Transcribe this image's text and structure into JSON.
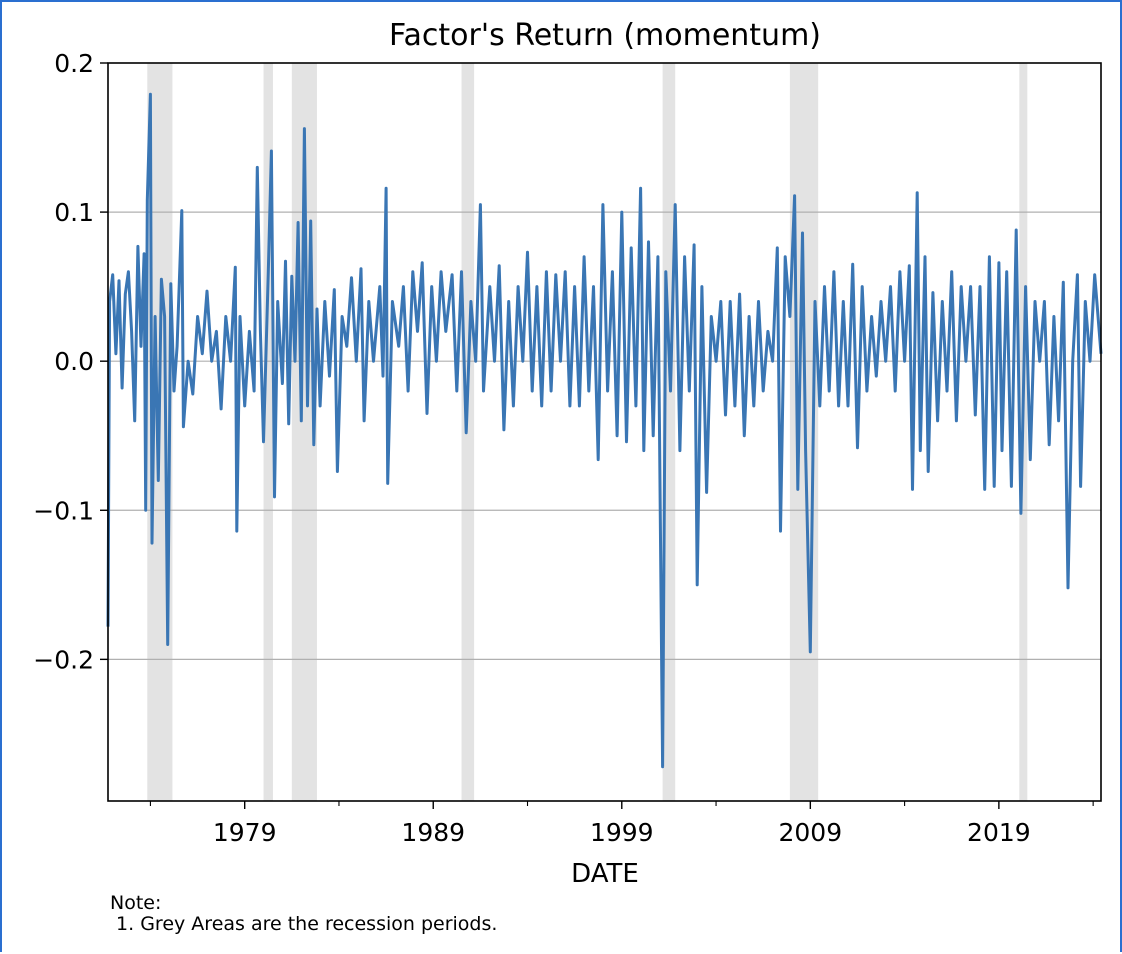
{
  "chart_data": {
    "type": "line",
    "title": "Factor's Return (momentum)",
    "xlabel": "DATE",
    "ylabel": "",
    "x_range": [
      "1971-10",
      "2024-06"
    ],
    "ylim": [
      -0.295,
      0.2
    ],
    "y_ticks": [
      0.2,
      0.1,
      0.0,
      -0.1,
      -0.2
    ],
    "y_tick_labels": [
      "0.2",
      "0.1",
      "0.0",
      "−0.1",
      "−0.2"
    ],
    "x_ticks": [
      1979,
      1989,
      1999,
      2009,
      2019
    ],
    "x_tick_labels": [
      "1979",
      "1989",
      "1999",
      "2009",
      "2019"
    ],
    "grid": "horizontal",
    "legend": "none",
    "line_color": "#3a76b4",
    "recession_color": "#e3e3e3",
    "recessions": [
      {
        "start": "1973-11",
        "end": "1975-03"
      },
      {
        "start": "1980-01",
        "end": "1980-07"
      },
      {
        "start": "1981-07",
        "end": "1982-11"
      },
      {
        "start": "1990-07",
        "end": "1991-03"
      },
      {
        "start": "2001-03",
        "end": "2001-11"
      },
      {
        "start": "2007-12",
        "end": "2009-06"
      },
      {
        "start": "2020-02",
        "end": "2020-04"
      }
    ],
    "series": [
      {
        "points": [
          [
            "1971-10",
            -0.178
          ],
          [
            "1971-11",
            0.04
          ],
          [
            "1972-01",
            0.058
          ],
          [
            "1972-03",
            0.005
          ],
          [
            "1972-05",
            0.054
          ],
          [
            "1972-07",
            -0.018
          ],
          [
            "1972-09",
            0.045
          ],
          [
            "1972-11",
            0.06
          ],
          [
            "1973-01",
            0.02
          ],
          [
            "1973-03",
            -0.04
          ],
          [
            "1973-05",
            0.077
          ],
          [
            "1973-07",
            0.01
          ],
          [
            "1973-09",
            0.072
          ],
          [
            "1973-10",
            -0.1
          ],
          [
            "1973-11",
            0.108
          ],
          [
            "1974-01",
            0.179
          ],
          [
            "1974-02",
            -0.122
          ],
          [
            "1974-04",
            0.03
          ],
          [
            "1974-06",
            -0.08
          ],
          [
            "1974-08",
            0.055
          ],
          [
            "1974-10",
            0.03
          ],
          [
            "1974-12",
            -0.19
          ],
          [
            "1975-02",
            0.052
          ],
          [
            "1975-04",
            -0.02
          ],
          [
            "1975-06",
            0.01
          ],
          [
            "1975-09",
            0.101
          ],
          [
            "1975-10",
            -0.044
          ],
          [
            "1976-01",
            0.0
          ],
          [
            "1976-04",
            -0.022
          ],
          [
            "1976-07",
            0.03
          ],
          [
            "1976-10",
            0.005
          ],
          [
            "1977-01",
            0.047
          ],
          [
            "1977-04",
            0.0
          ],
          [
            "1977-07",
            0.02
          ],
          [
            "1977-10",
            -0.032
          ],
          [
            "1978-01",
            0.03
          ],
          [
            "1978-04",
            0.0
          ],
          [
            "1978-07",
            0.063
          ],
          [
            "1978-08",
            -0.114
          ],
          [
            "1978-10",
            0.03
          ],
          [
            "1979-01",
            -0.03
          ],
          [
            "1979-04",
            0.02
          ],
          [
            "1979-07",
            -0.02
          ],
          [
            "1979-09",
            0.13
          ],
          [
            "1979-11",
            0.02
          ],
          [
            "1980-01",
            -0.054
          ],
          [
            "1980-04",
            0.06
          ],
          [
            "1980-06",
            0.141
          ],
          [
            "1980-08",
            -0.091
          ],
          [
            "1980-10",
            0.04
          ],
          [
            "1981-01",
            -0.015
          ],
          [
            "1981-03",
            0.067
          ],
          [
            "1981-05",
            -0.042
          ],
          [
            "1981-07",
            0.057
          ],
          [
            "1981-09",
            0.0
          ],
          [
            "1981-11",
            0.093
          ],
          [
            "1982-01",
            -0.04
          ],
          [
            "1982-03",
            0.156
          ],
          [
            "1982-05",
            -0.03
          ],
          [
            "1982-07",
            0.094
          ],
          [
            "1982-09",
            -0.056
          ],
          [
            "1982-11",
            0.035
          ],
          [
            "1983-01",
            -0.03
          ],
          [
            "1983-04",
            0.04
          ],
          [
            "1983-07",
            -0.01
          ],
          [
            "1983-10",
            0.048
          ],
          [
            "1983-12",
            -0.074
          ],
          [
            "1984-03",
            0.03
          ],
          [
            "1984-06",
            0.01
          ],
          [
            "1984-09",
            0.056
          ],
          [
            "1984-12",
            0.0
          ],
          [
            "1985-03",
            0.062
          ],
          [
            "1985-05",
            -0.04
          ],
          [
            "1985-08",
            0.04
          ],
          [
            "1985-11",
            0.0
          ],
          [
            "1986-03",
            0.05
          ],
          [
            "1986-05",
            -0.01
          ],
          [
            "1986-07",
            0.116
          ],
          [
            "1986-08",
            -0.082
          ],
          [
            "1986-11",
            0.04
          ],
          [
            "1987-03",
            0.01
          ],
          [
            "1987-06",
            0.05
          ],
          [
            "1987-09",
            -0.02
          ],
          [
            "1987-12",
            0.06
          ],
          [
            "1988-03",
            0.02
          ],
          [
            "1988-06",
            0.066
          ],
          [
            "1988-09",
            -0.035
          ],
          [
            "1988-12",
            0.05
          ],
          [
            "1989-03",
            0.0
          ],
          [
            "1989-06",
            0.06
          ],
          [
            "1989-09",
            0.02
          ],
          [
            "1990-01",
            0.058
          ],
          [
            "1990-04",
            -0.02
          ],
          [
            "1990-07",
            0.06
          ],
          [
            "1990-10",
            -0.048
          ],
          [
            "1991-01",
            0.04
          ],
          [
            "1991-04",
            0.0
          ],
          [
            "1991-07",
            0.105
          ],
          [
            "1991-09",
            -0.02
          ],
          [
            "1992-01",
            0.05
          ],
          [
            "1992-04",
            0.0
          ],
          [
            "1992-07",
            0.064
          ],
          [
            "1992-10",
            -0.046
          ],
          [
            "1993-01",
            0.04
          ],
          [
            "1993-04",
            -0.03
          ],
          [
            "1993-07",
            0.05
          ],
          [
            "1993-10",
            0.0
          ],
          [
            "1994-01",
            0.073
          ],
          [
            "1994-04",
            -0.02
          ],
          [
            "1994-07",
            0.05
          ],
          [
            "1994-10",
            -0.03
          ],
          [
            "1995-01",
            0.06
          ],
          [
            "1995-04",
            -0.02
          ],
          [
            "1995-07",
            0.058
          ],
          [
            "1995-10",
            0.0
          ],
          [
            "1996-01",
            0.06
          ],
          [
            "1996-04",
            -0.03
          ],
          [
            "1996-07",
            0.05
          ],
          [
            "1996-10",
            -0.03
          ],
          [
            "1997-01",
            0.07
          ],
          [
            "1997-04",
            -0.02
          ],
          [
            "1997-07",
            0.05
          ],
          [
            "1997-10",
            -0.066
          ],
          [
            "1998-01",
            0.105
          ],
          [
            "1998-04",
            -0.02
          ],
          [
            "1998-07",
            0.06
          ],
          [
            "1998-10",
            -0.05
          ],
          [
            "1999-01",
            0.1
          ],
          [
            "1999-04",
            -0.054
          ],
          [
            "1999-07",
            0.076
          ],
          [
            "1999-10",
            -0.03
          ],
          [
            "2000-01",
            0.116
          ],
          [
            "2000-03",
            -0.06
          ],
          [
            "2000-06",
            0.08
          ],
          [
            "2000-09",
            -0.05
          ],
          [
            "2000-12",
            0.07
          ],
          [
            "2001-03",
            -0.272
          ],
          [
            "2001-05",
            0.06
          ],
          [
            "2001-08",
            -0.02
          ],
          [
            "2001-11",
            0.105
          ],
          [
            "2002-02",
            -0.06
          ],
          [
            "2002-05",
            0.07
          ],
          [
            "2002-08",
            -0.02
          ],
          [
            "2002-11",
            0.078
          ],
          [
            "2003-01",
            -0.15
          ],
          [
            "2003-04",
            0.05
          ],
          [
            "2003-07",
            -0.088
          ],
          [
            "2003-10",
            0.03
          ],
          [
            "2004-01",
            0.0
          ],
          [
            "2004-04",
            0.04
          ],
          [
            "2004-07",
            -0.036
          ],
          [
            "2004-10",
            0.04
          ],
          [
            "2005-01",
            -0.03
          ],
          [
            "2005-04",
            0.045
          ],
          [
            "2005-07",
            -0.05
          ],
          [
            "2005-10",
            0.03
          ],
          [
            "2006-01",
            -0.03
          ],
          [
            "2006-04",
            0.04
          ],
          [
            "2006-07",
            -0.02
          ],
          [
            "2006-10",
            0.02
          ],
          [
            "2007-01",
            0.0
          ],
          [
            "2007-04",
            0.076
          ],
          [
            "2007-06",
            -0.114
          ],
          [
            "2007-09",
            0.07
          ],
          [
            "2007-12",
            0.03
          ],
          [
            "2008-03",
            0.111
          ],
          [
            "2008-05",
            -0.086
          ],
          [
            "2008-08",
            0.086
          ],
          [
            "2008-10",
            -0.06
          ],
          [
            "2009-01",
            -0.195
          ],
          [
            "2009-04",
            0.04
          ],
          [
            "2009-07",
            -0.03
          ],
          [
            "2009-10",
            0.05
          ],
          [
            "2010-01",
            -0.02
          ],
          [
            "2010-04",
            0.06
          ],
          [
            "2010-07",
            -0.03
          ],
          [
            "2010-10",
            0.04
          ],
          [
            "2011-01",
            -0.03
          ],
          [
            "2011-04",
            0.065
          ],
          [
            "2011-07",
            -0.058
          ],
          [
            "2011-10",
            0.05
          ],
          [
            "2012-01",
            -0.02
          ],
          [
            "2012-04",
            0.03
          ],
          [
            "2012-07",
            -0.01
          ],
          [
            "2012-10",
            0.04
          ],
          [
            "2013-01",
            0.0
          ],
          [
            "2013-04",
            0.05
          ],
          [
            "2013-07",
            -0.02
          ],
          [
            "2013-10",
            0.06
          ],
          [
            "2014-01",
            0.0
          ],
          [
            "2014-04",
            0.064
          ],
          [
            "2014-06",
            -0.086
          ],
          [
            "2014-09",
            0.113
          ],
          [
            "2014-11",
            -0.06
          ],
          [
            "2015-02",
            0.07
          ],
          [
            "2015-04",
            -0.074
          ],
          [
            "2015-07",
            0.046
          ],
          [
            "2015-10",
            -0.04
          ],
          [
            "2016-01",
            0.04
          ],
          [
            "2016-04",
            -0.02
          ],
          [
            "2016-07",
            0.06
          ],
          [
            "2016-10",
            -0.04
          ],
          [
            "2017-01",
            0.05
          ],
          [
            "2017-04",
            0.0
          ],
          [
            "2017-07",
            0.05
          ],
          [
            "2017-10",
            -0.036
          ],
          [
            "2018-01",
            0.05
          ],
          [
            "2018-04",
            -0.086
          ],
          [
            "2018-07",
            0.07
          ],
          [
            "2018-10",
            -0.084
          ],
          [
            "2019-01",
            0.066
          ],
          [
            "2019-03",
            -0.06
          ],
          [
            "2019-06",
            0.06
          ],
          [
            "2019-09",
            -0.084
          ],
          [
            "2019-12",
            0.088
          ],
          [
            "2020-03",
            -0.102
          ],
          [
            "2020-06",
            0.05
          ],
          [
            "2020-09",
            -0.066
          ],
          [
            "2020-12",
            0.04
          ],
          [
            "2021-03",
            0.0
          ],
          [
            "2021-06",
            0.04
          ],
          [
            "2021-09",
            -0.056
          ],
          [
            "2021-12",
            0.03
          ],
          [
            "2022-03",
            -0.04
          ],
          [
            "2022-06",
            0.053
          ],
          [
            "2022-09",
            -0.152
          ],
          [
            "2022-12",
            0.0
          ],
          [
            "2023-03",
            0.058
          ],
          [
            "2023-05",
            -0.084
          ],
          [
            "2023-08",
            0.04
          ],
          [
            "2023-11",
            0.0
          ],
          [
            "2024-02",
            0.058
          ],
          [
            "2024-06",
            0.005
          ]
        ]
      }
    ],
    "annotations": [
      "Note:",
      " 1. Grey Areas are the recession periods."
    ]
  }
}
